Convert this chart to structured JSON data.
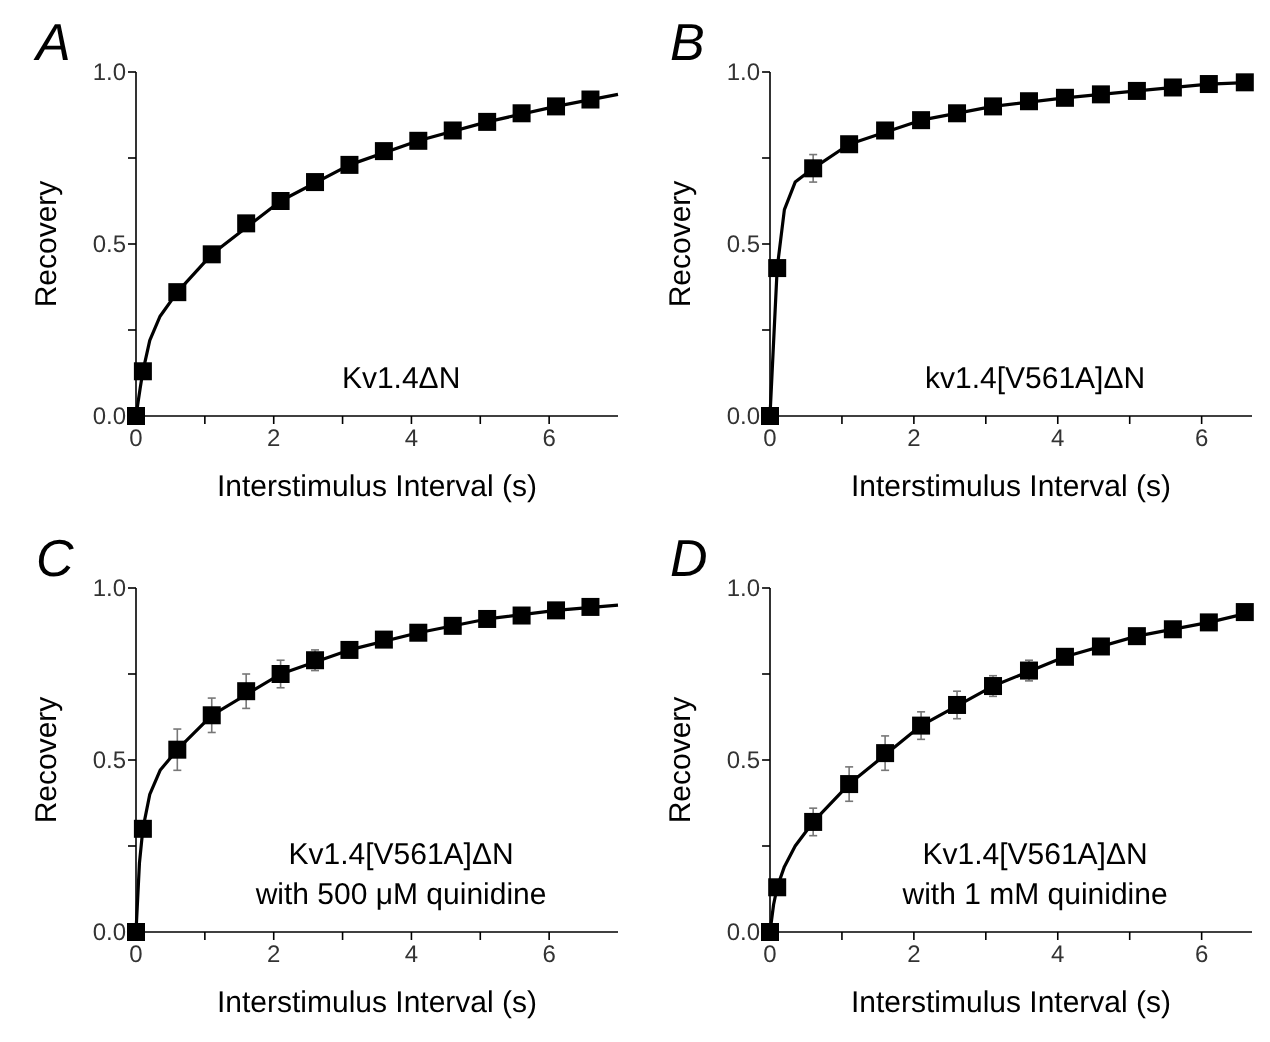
{
  "chart_data": [
    {
      "type": "scatter",
      "title": "A",
      "xlabel": "Interstimulus Interval (s)",
      "ylabel": "Recovery",
      "annotations": [
        "Kv1.4ΔN"
      ],
      "xlim": [
        0,
        7
      ],
      "ylim": [
        0,
        1
      ],
      "xticks": [
        {
          "value": 0,
          "label": "0"
        },
        {
          "value": 1,
          "label": null
        },
        2,
        {
          "value": 3,
          "label": null
        },
        4,
        {
          "value": 5,
          "label": null
        },
        6
      ],
      "yticks": [
        {
          "value": 0,
          "label": "0.0"
        },
        {
          "value": 0.25,
          "label": null
        },
        {
          "value": 0.5,
          "label": "0.5"
        },
        {
          "value": 0.75,
          "label": null
        },
        {
          "value": 1,
          "label": "1.0"
        }
      ],
      "grid": false,
      "series": [
        {
          "type": "line",
          "color": "#000000",
          "marker": "none",
          "line_style": "solid",
          "x": [
            0,
            0.03,
            0.06,
            0.1,
            0.2,
            0.35,
            0.6,
            1.1,
            2.1,
            3.1,
            4.1,
            5.1,
            6.1,
            7
          ],
          "values": [
            0,
            0.04,
            0.08,
            0.13,
            0.22,
            0.29,
            0.36,
            0.47,
            0.625,
            0.73,
            0.8,
            0.855,
            0.9,
            0.935
          ]
        },
        {
          "color": "#000000",
          "marker": "square",
          "x": [
            0,
            0.1,
            0.6,
            1.1,
            1.6,
            2.1,
            2.6,
            3.1,
            3.6,
            4.1,
            4.6,
            5.1,
            5.6,
            6.1,
            6.6
          ],
          "values": [
            0,
            0.13,
            0.36,
            0.47,
            0.56,
            0.625,
            0.68,
            0.73,
            0.77,
            0.8,
            0.83,
            0.855,
            0.88,
            0.9,
            0.92
          ]
        }
      ]
    },
    {
      "type": "scatter",
      "title": "B",
      "xlabel": "Interstimulus Interval (s)",
      "ylabel": "Recovery",
      "annotations": [
        "kv1.4[V561A]ΔN"
      ],
      "xlim": [
        0,
        6.7
      ],
      "ylim": [
        0,
        1
      ],
      "xticks": [
        {
          "value": 0,
          "label": "0"
        },
        {
          "value": 1,
          "label": null
        },
        2,
        {
          "value": 3,
          "label": null
        },
        4,
        {
          "value": 5,
          "label": null
        },
        6
      ],
      "yticks": [
        {
          "value": 0,
          "label": "0.0"
        },
        {
          "value": 0.25,
          "label": null
        },
        {
          "value": 0.5,
          "label": "0.5"
        },
        {
          "value": 0.75,
          "label": null
        },
        {
          "value": 1,
          "label": "1.0"
        }
      ],
      "grid": false,
      "series": [
        {
          "type": "line",
          "color": "#000000",
          "marker": "none",
          "line_style": "solid",
          "x": [
            0,
            0.1,
            0.2,
            0.35,
            0.6,
            1.1,
            2.1,
            3.1,
            4.1,
            5.1,
            6.1,
            6.7
          ],
          "values": [
            0,
            0.43,
            0.6,
            0.68,
            0.72,
            0.79,
            0.86,
            0.9,
            0.925,
            0.945,
            0.965,
            0.97
          ]
        },
        {
          "color": "#000000",
          "marker": "square",
          "x": [
            0,
            0.1,
            0.6,
            1.1,
            1.6,
            2.1,
            2.6,
            3.1,
            3.6,
            4.1,
            4.6,
            5.1,
            5.6,
            6.1,
            6.6
          ],
          "values": [
            0,
            0.43,
            0.72,
            0.79,
            0.83,
            0.86,
            0.88,
            0.9,
            0.915,
            0.925,
            0.935,
            0.945,
            0.955,
            0.965,
            0.97
          ],
          "errors": [
            null,
            null,
            0.04,
            null,
            null,
            null,
            null,
            null,
            null,
            null,
            null,
            null,
            null,
            null,
            null
          ]
        }
      ]
    },
    {
      "type": "scatter",
      "title": "C",
      "xlabel": "Interstimulus Interval (s)",
      "ylabel": "Recovery",
      "annotations": [
        "Kv1.4[V561A]ΔN",
        "with 500 μM quinidine"
      ],
      "xlim": [
        0,
        7
      ],
      "ylim": [
        0,
        1
      ],
      "xticks": [
        {
          "value": 0,
          "label": "0"
        },
        {
          "value": 1,
          "label": null
        },
        2,
        {
          "value": 3,
          "label": null
        },
        4,
        {
          "value": 5,
          "label": null
        },
        6
      ],
      "yticks": [
        {
          "value": 0,
          "label": "0.0"
        },
        {
          "value": 0.25,
          "label": null
        },
        {
          "value": 0.5,
          "label": "0.5"
        },
        {
          "value": 0.75,
          "label": null
        },
        {
          "value": 1,
          "label": "1.0"
        }
      ],
      "grid": false,
      "series": [
        {
          "type": "line",
          "color": "#000000",
          "marker": "none",
          "line_style": "solid",
          "x": [
            0,
            0.05,
            0.1,
            0.2,
            0.35,
            0.6,
            1.1,
            2.1,
            3.1,
            4.1,
            5.1,
            6.1,
            7
          ],
          "values": [
            0,
            0.2,
            0.3,
            0.4,
            0.47,
            0.53,
            0.63,
            0.75,
            0.82,
            0.87,
            0.91,
            0.935,
            0.95
          ]
        },
        {
          "color": "#000000",
          "marker": "square",
          "x": [
            0,
            0.1,
            0.6,
            1.1,
            1.6,
            2.1,
            2.6,
            3.1,
            3.6,
            4.1,
            4.6,
            5.1,
            5.6,
            6.1,
            6.6
          ],
          "values": [
            0,
            0.3,
            0.53,
            0.63,
            0.7,
            0.75,
            0.79,
            0.82,
            0.85,
            0.87,
            0.89,
            0.91,
            0.92,
            0.935,
            0.945
          ],
          "errors": [
            null,
            null,
            0.06,
            0.05,
            0.05,
            0.04,
            0.03,
            null,
            null,
            null,
            null,
            null,
            null,
            null,
            null
          ]
        }
      ]
    },
    {
      "type": "scatter",
      "title": "D",
      "xlabel": "Interstimulus Interval (s)",
      "ylabel": "Recovery",
      "annotations": [
        "Kv1.4[V561A]ΔN",
        "with 1 mM quinidine"
      ],
      "xlim": [
        0,
        6.7
      ],
      "ylim": [
        0,
        1
      ],
      "xticks": [
        {
          "value": 0,
          "label": "0"
        },
        {
          "value": 1,
          "label": null
        },
        2,
        {
          "value": 3,
          "label": null
        },
        4,
        {
          "value": 5,
          "label": null
        },
        6
      ],
      "yticks": [
        {
          "value": 0,
          "label": "0.0"
        },
        {
          "value": 0.25,
          "label": null
        },
        {
          "value": 0.5,
          "label": "0.5"
        },
        {
          "value": 0.75,
          "label": null
        },
        {
          "value": 1,
          "label": "1.0"
        }
      ],
      "grid": false,
      "series": [
        {
          "type": "line",
          "color": "#000000",
          "marker": "none",
          "line_style": "solid",
          "x": [
            0,
            0.05,
            0.1,
            0.2,
            0.35,
            0.6,
            1.1,
            2.1,
            3.1,
            4.1,
            5.1,
            6.1,
            6.7
          ],
          "values": [
            0,
            0.08,
            0.13,
            0.19,
            0.25,
            0.32,
            0.43,
            0.6,
            0.715,
            0.8,
            0.86,
            0.9,
            0.93
          ]
        },
        {
          "color": "#000000",
          "marker": "square",
          "x": [
            0,
            0.1,
            0.6,
            1.1,
            1.6,
            2.1,
            2.6,
            3.1,
            3.6,
            4.1,
            4.6,
            5.1,
            5.6,
            6.1,
            6.6
          ],
          "values": [
            0,
            0.13,
            0.32,
            0.43,
            0.52,
            0.6,
            0.66,
            0.715,
            0.76,
            0.8,
            0.83,
            0.86,
            0.88,
            0.9,
            0.93
          ],
          "errors": [
            null,
            null,
            0.04,
            0.05,
            0.05,
            0.04,
            0.04,
            0.03,
            0.03,
            null,
            null,
            null,
            null,
            null,
            null
          ]
        }
      ]
    }
  ]
}
